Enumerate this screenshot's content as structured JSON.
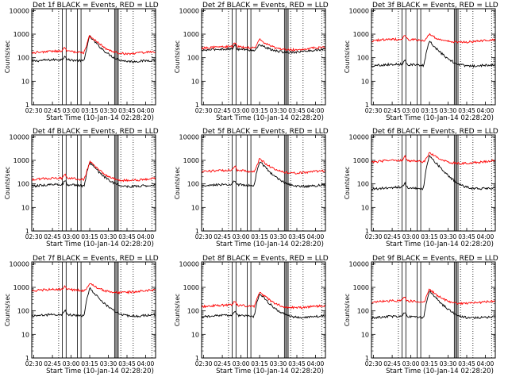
{
  "chart_data": {
    "type": "line",
    "x_ticks": [
      "02:30",
      "02:45",
      "03:00",
      "03:15",
      "03:30",
      "03:45",
      "04:00"
    ],
    "y_ticks": [
      "1",
      "10",
      "100",
      "1000",
      "10000"
    ],
    "ylabel": "Counts/sec",
    "xlabel": "Start Time (10-Jan-14 02:28:20)",
    "x_range": [
      "02:28:20",
      "04:08:00"
    ],
    "y_range": [
      1,
      12000
    ],
    "y_scale": "log",
    "colors": {
      "events": "#000000",
      "lld": "#ff0000"
    },
    "vertical_dotted_lines": [
      "02:50",
      "03:40",
      "03:50",
      "04:05"
    ],
    "vertical_solid_lines": [
      "02:53",
      "02:56",
      "03:05",
      "03:08",
      "03:35",
      "03:36",
      "03:37",
      "03:38"
    ],
    "panels": [
      {
        "title": "Det 1f  BLACK = Events, RED = LLD",
        "events_base": 70,
        "lld_base": 160,
        "events_peak": 800,
        "lld_peak": 900
      },
      {
        "title": "Det 2f  BLACK = Events, RED = LLD",
        "events_base": 200,
        "lld_base": 250,
        "events_peak": 380,
        "lld_peak": 600
      },
      {
        "title": "Det 3f  BLACK = Events, RED = LLD",
        "events_base": 45,
        "lld_base": 520,
        "events_peak": 500,
        "lld_peak": 1000
      },
      {
        "title": "Det 4f  BLACK = Events, RED = LLD",
        "events_base": 80,
        "lld_base": 150,
        "events_peak": 800,
        "lld_peak": 900
      },
      {
        "title": "Det 5f  BLACK = Events, RED = LLD",
        "events_base": 80,
        "lld_base": 320,
        "events_peak": 900,
        "lld_peak": 1200
      },
      {
        "title": "Det 6f  BLACK = Events, RED = LLD",
        "events_base": 60,
        "lld_base": 850,
        "events_peak": 1600,
        "lld_peak": 2200
      },
      {
        "title": "Det 7f  BLACK = Events, RED = LLD",
        "events_base": 60,
        "lld_base": 700,
        "events_peak": 900,
        "lld_peak": 1500
      },
      {
        "title": "Det 8f  BLACK = Events, RED = LLD",
        "events_base": 55,
        "lld_base": 150,
        "events_peak": 550,
        "lld_peak": 650
      },
      {
        "title": "Det 9f  BLACK = Events, RED = LLD",
        "events_base": 50,
        "lld_base": 230,
        "events_peak": 700,
        "lld_peak": 850
      }
    ]
  }
}
